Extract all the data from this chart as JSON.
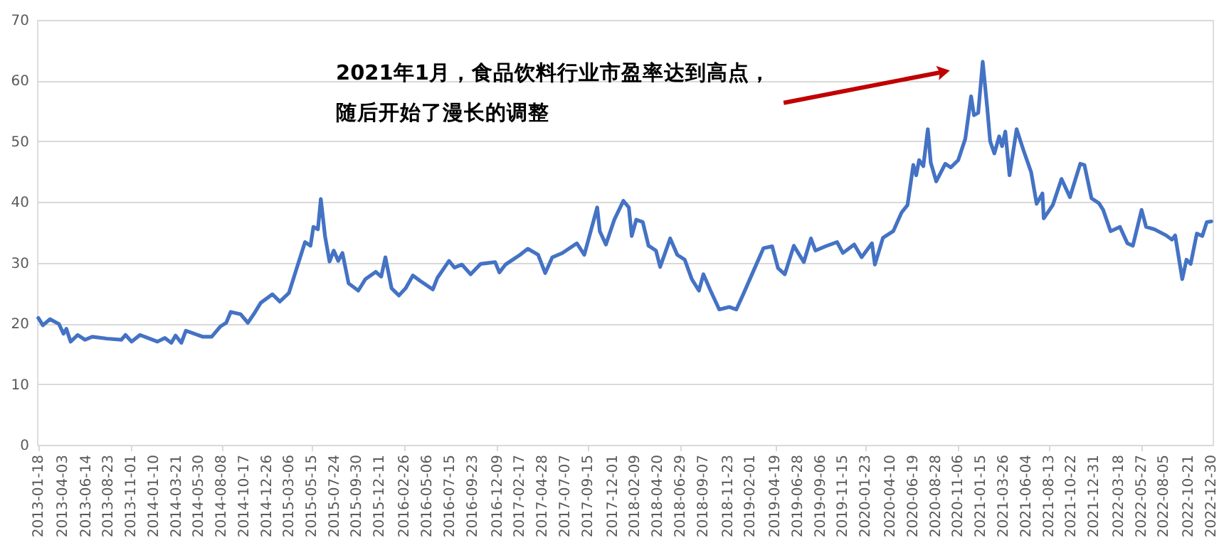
{
  "chart_data": {
    "type": "line",
    "annotations": [
      "2021年1月，食品饮料行业市盈率达到高点，随后开始了漫长的调整"
    ],
    "xlim": [
      "2013-01-14",
      "2023-01-03"
    ],
    "xticks": [
      "2013-01-18",
      "2013-04-03",
      "2013-06-14",
      "2013-08-23",
      "2013-11-01",
      "2014-01-10",
      "2014-03-21",
      "2014-05-30",
      "2014-08-08",
      "2014-10-17",
      "2014-12-26",
      "2015-03-06",
      "2015-05-15",
      "2015-07-24",
      "2015-09-30",
      "2015-12-11",
      "2016-02-26",
      "2016-05-06",
      "2016-07-15",
      "2016-09-23",
      "2016-12-09",
      "2017-02-17",
      "2017-04-28",
      "2017-07-07",
      "2017-09-15",
      "2017-12-01",
      "2018-02-09",
      "2018-04-20",
      "2018-06-29",
      "2018-09-07",
      "2018-11-23",
      "2019-02-01",
      "2019-04-19",
      "2019-06-28",
      "2019-09-06",
      "2019-11-15",
      "2020-01-23",
      "2020-04-10",
      "2020-06-19",
      "2020-08-28",
      "2020-11-06",
      "2021-01-15",
      "2021-03-26",
      "2021-06-04",
      "2021-08-13",
      "2021-10-22",
      "2021-12-31",
      "2022-03-18",
      "2022-05-27",
      "2022-08-05",
      "2022-10-21",
      "2022-12-30"
    ],
    "ylim": [
      0,
      70
    ],
    "yticks": [
      0,
      10,
      20,
      30,
      40,
      50,
      60,
      70
    ],
    "grid": "y",
    "marker": "none",
    "line_style": "solid",
    "series": [
      {
        "color": "#4472c4",
        "x": [
          "2013-01-18",
          "2013-02-01",
          "2013-02-23",
          "2013-03-23",
          "2013-04-06",
          "2013-04-15",
          "2013-04-28",
          "2013-05-20",
          "2013-06-12",
          "2013-07-04",
          "2013-08-18",
          "2013-10-02",
          "2013-10-15",
          "2013-11-03",
          "2013-11-29",
          "2014-01-22",
          "2014-02-14",
          "2014-03-06",
          "2014-03-19",
          "2014-04-06",
          "2014-04-20",
          "2014-06-12",
          "2014-07-09",
          "2014-08-05",
          "2014-08-23",
          "2014-09-06",
          "2014-10-07",
          "2014-10-29",
          "2014-11-16",
          "2014-12-08",
          "2015-01-13",
          "2015-02-05",
          "2015-03-05",
          "2015-04-02",
          "2015-04-24",
          "2015-05-11",
          "2015-05-20",
          "2015-06-03",
          "2015-06-12",
          "2015-06-25",
          "2015-07-09",
          "2015-07-22",
          "2015-08-05",
          "2015-08-18",
          "2015-09-06",
          "2015-10-06",
          "2015-10-28",
          "2015-11-29",
          "2015-12-16",
          "2015-12-29",
          "2016-01-17",
          "2016-02-09",
          "2016-03-01",
          "2016-03-23",
          "2016-04-15",
          "2016-05-24",
          "2016-06-07",
          "2016-07-13",
          "2016-07-30",
          "2016-08-22",
          "2016-09-18",
          "2016-10-19",
          "2016-12-03",
          "2016-12-16",
          "2017-01-04",
          "2017-02-18",
          "2017-03-14",
          "2017-04-15",
          "2017-05-07",
          "2017-05-29",
          "2017-06-29",
          "2017-08-13",
          "2017-09-05",
          "2017-10-15",
          "2017-10-23",
          "2017-11-11",
          "2017-12-07",
          "2018-01-04",
          "2018-01-21",
          "2018-01-30",
          "2018-02-13",
          "2018-03-05",
          "2018-03-23",
          "2018-04-15",
          "2018-04-28",
          "2018-05-29",
          "2018-06-20",
          "2018-07-13",
          "2018-08-04",
          "2018-08-26",
          "2018-09-09",
          "2018-10-01",
          "2018-10-28",
          "2018-11-28",
          "2018-12-20",
          "2019-01-12",
          "2019-02-13",
          "2019-03-14",
          "2019-04-10",
          "2019-04-28",
          "2019-05-19",
          "2019-06-16",
          "2019-07-17",
          "2019-08-08",
          "2019-08-22",
          "2019-09-22",
          "2019-10-28",
          "2019-11-15",
          "2019-12-20",
          "2020-01-12",
          "2020-02-13",
          "2020-02-22",
          "2020-03-18",
          "2020-04-19",
          "2020-05-15",
          "2020-06-02",
          "2020-06-20",
          "2020-06-29",
          "2020-07-08",
          "2020-07-21",
          "2020-08-04",
          "2020-08-13",
          "2020-08-30",
          "2020-09-27",
          "2020-10-14",
          "2020-11-06",
          "2020-11-28",
          "2020-12-16",
          "2020-12-25",
          "2021-01-07",
          "2021-01-21",
          "2021-02-04",
          "2021-02-13",
          "2021-02-26",
          "2021-03-13",
          "2021-03-22",
          "2021-04-01",
          "2021-04-14",
          "2021-05-06",
          "2021-05-28",
          "2021-06-20",
          "2021-07-07",
          "2021-07-25",
          "2021-07-29",
          "2021-08-26",
          "2021-09-22",
          "2021-10-18",
          "2021-11-19",
          "2021-12-02",
          "2021-12-24",
          "2022-01-16",
          "2022-01-29",
          "2022-02-21",
          "2022-03-22",
          "2022-04-14",
          "2022-05-01",
          "2022-05-28",
          "2022-06-11",
          "2022-07-07",
          "2022-08-12",
          "2022-08-30",
          "2022-09-09",
          "2022-10-01",
          "2022-10-14",
          "2022-10-27",
          "2022-11-15",
          "2022-12-02",
          "2022-12-16",
          "2022-12-30"
        ],
        "values": [
          20.9,
          19.7,
          20.7,
          19.9,
          18.3,
          19.1,
          17.0,
          18.1,
          17.3,
          17.8,
          17.5,
          17.3,
          18.1,
          17.0,
          18.1,
          17.0,
          17.6,
          16.8,
          18.0,
          16.8,
          18.8,
          17.8,
          17.8,
          19.5,
          20.1,
          21.9,
          21.5,
          20.1,
          21.5,
          23.4,
          24.8,
          23.6,
          25.0,
          29.7,
          33.4,
          32.8,
          35.9,
          35.5,
          40.5,
          34.4,
          30.2,
          32.0,
          30.3,
          31.6,
          26.6,
          25.4,
          27.3,
          28.5,
          27.7,
          30.9,
          25.8,
          24.6,
          25.8,
          27.9,
          27.0,
          25.6,
          27.5,
          30.3,
          29.2,
          29.7,
          28.1,
          29.8,
          30.1,
          28.4,
          29.7,
          31.3,
          32.3,
          31.3,
          28.3,
          30.9,
          31.6,
          33.2,
          31.3,
          39.1,
          35.2,
          33.0,
          37.1,
          40.2,
          39.1,
          34.4,
          37.1,
          36.7,
          32.8,
          32.0,
          29.3,
          34.0,
          31.3,
          30.5,
          27.3,
          25.4,
          28.1,
          25.4,
          22.3,
          22.7,
          22.3,
          25.0,
          28.9,
          32.4,
          32.7,
          29.1,
          28.1,
          32.8,
          30.1,
          34.0,
          32.0,
          32.7,
          33.4,
          31.6,
          33.0,
          30.9,
          33.2,
          29.7,
          34.1,
          35.2,
          38.3,
          39.5,
          46.1,
          44.4,
          46.9,
          45.9,
          52.0,
          46.5,
          43.4,
          46.3,
          45.7,
          46.9,
          50.4,
          57.4,
          54.3,
          54.7,
          63.1,
          55.5,
          50.0,
          48.0,
          50.8,
          49.2,
          51.6,
          44.4,
          52.0,
          48.4,
          44.9,
          39.7,
          41.4,
          37.3,
          39.5,
          43.8,
          40.8,
          46.3,
          46.1,
          40.6,
          39.8,
          38.7,
          35.2,
          35.9,
          33.2,
          32.8,
          38.7,
          35.9,
          35.5,
          34.5,
          33.8,
          34.5,
          27.3,
          30.5,
          29.8,
          34.8,
          34.4,
          36.7,
          36.8
        ]
      }
    ]
  }
}
